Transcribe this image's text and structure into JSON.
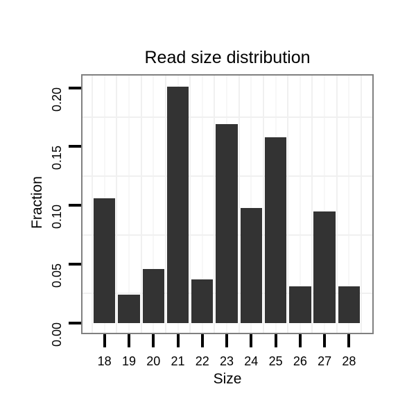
{
  "chart_data": {
    "type": "bar",
    "title": "Read size distribution",
    "xlabel": "Size",
    "ylabel": "Fraction",
    "categories": [
      "18",
      "19",
      "20",
      "21",
      "22",
      "23",
      "24",
      "25",
      "26",
      "27",
      "28"
    ],
    "values": [
      0.106,
      0.024,
      0.046,
      0.201,
      0.037,
      0.169,
      0.098,
      0.158,
      0.031,
      0.095,
      0.031
    ],
    "y_tick_labels": [
      "0.00",
      "0.05",
      "0.10",
      "0.15",
      "0.20"
    ],
    "y_tick_values": [
      0,
      0.05,
      0.1,
      0.15,
      0.2
    ],
    "minor_y_gridline_values": [
      0.025,
      0.075,
      0.125,
      0.175
    ],
    "ylim": [
      -0.0095,
      0.2115
    ],
    "xlim": [
      17.0,
      29.0
    ],
    "grid": "light minor gridlines on white panel, gray panel border",
    "legend": "none",
    "colors": {
      "bar": "#333333",
      "panel_border": "#808080",
      "grid_minor": "#f0f0f0",
      "grid_major": "#f7f7f7",
      "tick": "#000000",
      "text": "#000000",
      "background": "#ffffff"
    }
  }
}
